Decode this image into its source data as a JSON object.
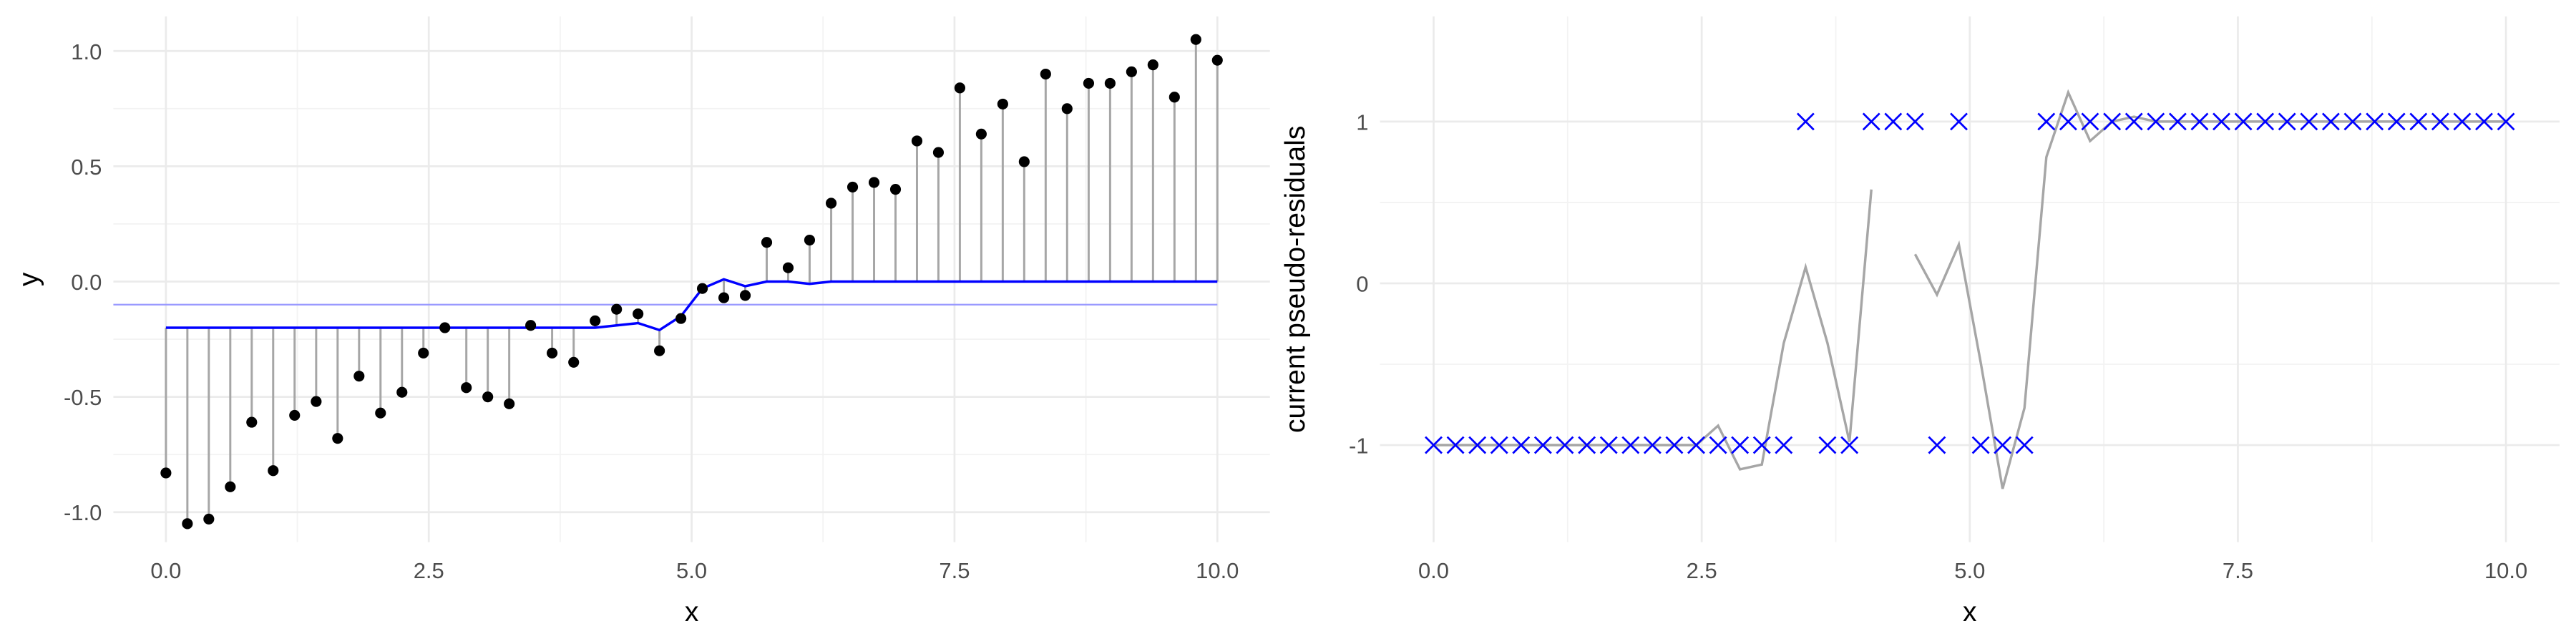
{
  "chart_data": [
    {
      "type": "stem",
      "x_label": "x",
      "y_label": "y",
      "x": [
        0,
        0.204,
        0.408,
        0.612,
        0.816,
        1.02,
        1.224,
        1.429,
        1.633,
        1.837,
        2.041,
        2.245,
        2.449,
        2.653,
        2.857,
        3.061,
        3.265,
        3.469,
        3.673,
        3.878,
        4.082,
        4.286,
        4.49,
        4.694,
        4.898,
        5.102,
        5.306,
        5.51,
        5.714,
        5.918,
        6.122,
        6.327,
        6.531,
        6.735,
        6.939,
        7.143,
        7.347,
        7.551,
        7.755,
        7.959,
        8.163,
        8.367,
        8.571,
        8.776,
        8.98,
        9.184,
        9.388,
        9.592,
        9.796,
        10
      ],
      "series": [
        {
          "mark": "point",
          "color": "#000000",
          "values": [
            -0.83,
            -1.05,
            -1.03,
            -0.89,
            -0.61,
            -0.82,
            -0.58,
            -0.52,
            -0.68,
            -0.41,
            -0.57,
            -0.48,
            -0.31,
            -0.2,
            -0.46,
            -0.5,
            -0.53,
            -0.19,
            -0.31,
            -0.35,
            -0.17,
            -0.12,
            -0.14,
            -0.3,
            -0.16,
            -0.03,
            -0.07,
            -0.06,
            0.17,
            0.06,
            0.18,
            0.34,
            0.41,
            0.43,
            0.4,
            0.61,
            0.56,
            0.84,
            0.64,
            0.77,
            0.52,
            0.9,
            0.75,
            0.86,
            0.86,
            0.91,
            0.94,
            0.8,
            1.05,
            0.96
          ]
        },
        {
          "mark": "line",
          "color": "#0000ff",
          "values": [
            -0.2,
            -0.2,
            -0.2,
            -0.2,
            -0.2,
            -0.2,
            -0.2,
            -0.2,
            -0.2,
            -0.2,
            -0.2,
            -0.2,
            -0.2,
            -0.2,
            -0.2,
            -0.2,
            -0.2,
            -0.2,
            -0.2,
            -0.2,
            -0.2,
            -0.19,
            -0.18,
            -0.21,
            -0.15,
            -0.03,
            0.01,
            -0.02,
            0,
            0,
            -0.01,
            0,
            0,
            0,
            0,
            0,
            0,
            0,
            0,
            0,
            0,
            0,
            0,
            0,
            0,
            0,
            0,
            0,
            0,
            0
          ]
        }
      ],
      "stem_color": "#a6a6a6",
      "hline": {
        "value": -0.1,
        "color": "#9999ff"
      },
      "xlim": [
        -0.5,
        10.5
      ],
      "ylim": [
        -1.13,
        1.15
      ],
      "xticks": [
        {
          "value": 0,
          "label": "0.0"
        },
        {
          "value": 2.5,
          "label": "2.5"
        },
        {
          "value": 5,
          "label": "5.0"
        },
        {
          "value": 7.5,
          "label": "7.5"
        },
        {
          "value": 10,
          "label": "10.0"
        }
      ],
      "yticks": [
        {
          "value": -1,
          "label": "-1.0"
        },
        {
          "value": -0.5,
          "label": "-0.5"
        },
        {
          "value": 0,
          "label": "0.0"
        },
        {
          "value": 0.5,
          "label": "0.5"
        },
        {
          "value": 1,
          "label": "1.0"
        }
      ],
      "grid": true
    },
    {
      "type": "scatter",
      "x_label": "x",
      "y_label": "current pseudo-residuals",
      "x": [
        0,
        0.204,
        0.408,
        0.612,
        0.816,
        1.02,
        1.224,
        1.429,
        1.633,
        1.837,
        2.041,
        2.245,
        2.449,
        2.653,
        2.857,
        3.061,
        3.265,
        3.469,
        3.673,
        3.878,
        4.082,
        4.286,
        4.49,
        4.694,
        4.898,
        5.102,
        5.306,
        5.51,
        5.714,
        5.918,
        6.122,
        6.327,
        6.531,
        6.735,
        6.939,
        7.143,
        7.347,
        7.551,
        7.755,
        7.959,
        8.163,
        8.367,
        8.571,
        8.776,
        8.98,
        9.184,
        9.388,
        9.592,
        9.796,
        10
      ],
      "series": [
        {
          "mark": "line",
          "color": "#a6a6a6",
          "values": [
            -1,
            -1,
            -1,
            -1,
            -1,
            -1,
            -1,
            -1,
            -1,
            -1,
            -1,
            -1,
            -1,
            -0.88,
            -1.15,
            -1.12,
            -0.37,
            0.1,
            -0.37,
            -0.98,
            0.58,
            null,
            0.18,
            -0.07,
            0.24,
            -0.49,
            -1.27,
            -0.77,
            0.78,
            1.18,
            0.88,
            1,
            1.03,
            1,
            1,
            1,
            1,
            1,
            1,
            1,
            1,
            1,
            1,
            1,
            1,
            1,
            1,
            1,
            1,
            1
          ]
        },
        {
          "mark": "cross",
          "color": "#0000ff",
          "values": [
            -1,
            -1,
            -1,
            -1,
            -1,
            -1,
            -1,
            -1,
            -1,
            -1,
            -1,
            -1,
            -1,
            -1,
            -1,
            -1,
            -1,
            1,
            -1,
            -1,
            1,
            1,
            1,
            -1,
            1,
            -1,
            -1,
            -1,
            1,
            1,
            1,
            1,
            1,
            1,
            1,
            1,
            1,
            1,
            1,
            1,
            1,
            1,
            1,
            1,
            1,
            1,
            1,
            1,
            1,
            1
          ]
        }
      ],
      "xlim": [
        -0.5,
        10.5
      ],
      "ylim": [
        -1.6,
        1.65
      ],
      "xticks": [
        {
          "value": 0,
          "label": "0.0"
        },
        {
          "value": 2.5,
          "label": "2.5"
        },
        {
          "value": 5,
          "label": "5.0"
        },
        {
          "value": 7.5,
          "label": "7.5"
        },
        {
          "value": 10,
          "label": "10.0"
        }
      ],
      "yticks": [
        -1,
        0,
        1
      ],
      "grid": true
    }
  ]
}
